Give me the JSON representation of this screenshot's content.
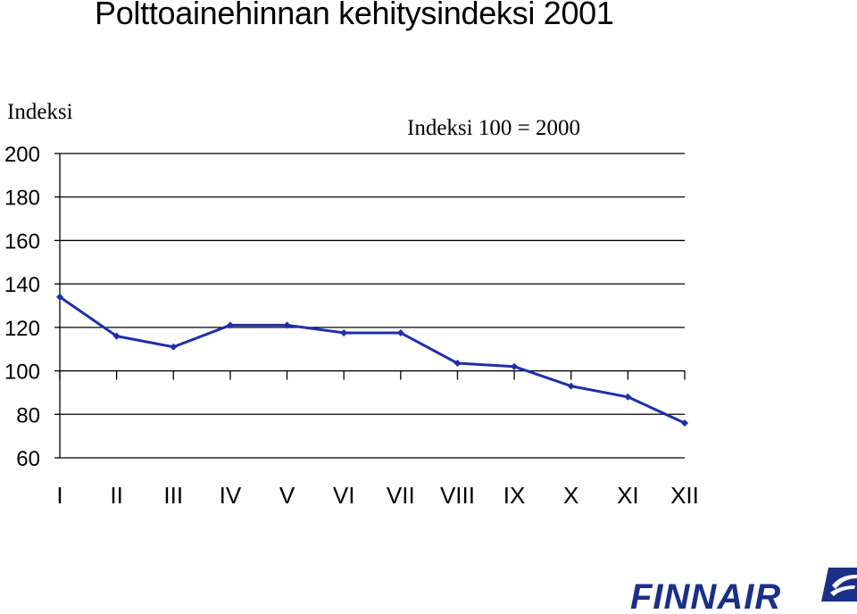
{
  "header": {
    "title": "Polttoainehinnan kehitysindeksi 2001"
  },
  "chart_data": {
    "type": "line",
    "title": "Polttoainehinnan kehitysindeksi 2001",
    "ylabel": "Indeksi",
    "annotation": "Indeksi 100 = 2000",
    "categories": [
      "I",
      "II",
      "III",
      "IV",
      "V",
      "VI",
      "VII",
      "VIII",
      "IX",
      "X",
      "XI",
      "XII"
    ],
    "values": [
      134,
      116,
      111,
      121,
      121,
      117.5,
      117.5,
      103.5,
      102,
      93,
      88,
      76
    ],
    "ylim": [
      60,
      200
    ],
    "yticks": [
      60,
      80,
      100,
      120,
      140,
      160,
      180,
      200
    ],
    "grid": true,
    "line_color": "#1f2fa8"
  },
  "logo": {
    "text": "FINNAIR",
    "color": "#1a2f86"
  }
}
